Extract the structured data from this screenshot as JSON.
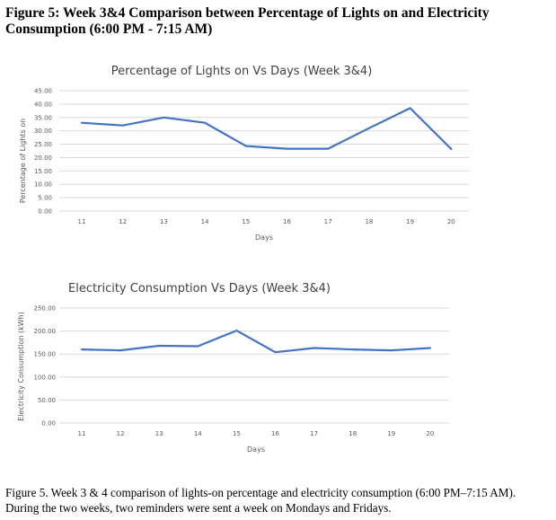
{
  "figure": {
    "title": "Figure 5: Week 3&4 Comparison between Percentage of Lights on and Electricity Consumption (6:00 PM - 7:15 AM)",
    "caption": "Figure 5. Week 3 & 4 comparison of lights-on percentage and electricity consumption (6:00 PM–7:15 AM). During the two weeks, two reminders were sent a week on Mondays and Fridays."
  },
  "colors": {
    "series": "#4472c4",
    "grid": "#d9d9d9",
    "text": "#595959"
  },
  "chart_data": [
    {
      "type": "line",
      "title": "Percentage of Lights on Vs Days (Week 3&4)",
      "xlabel": "Days",
      "ylabel": "Percentage of Lights on",
      "categories": [
        "11",
        "12",
        "13",
        "14",
        "15",
        "16",
        "17",
        "18",
        "19",
        "20"
      ],
      "series": [
        {
          "name": "Percentage of Lights on",
          "values": [
            33,
            32,
            35,
            33,
            24.3,
            23.3,
            23.3,
            31,
            38.5,
            23.2
          ]
        }
      ],
      "ylim": [
        0,
        45
      ],
      "yticks": [
        0,
        5,
        10,
        15,
        20,
        25,
        30,
        35,
        40,
        45
      ],
      "ytick_labels": [
        "0.00",
        "5.00",
        "10.00",
        "15.00",
        "20.00",
        "25.00",
        "30.00",
        "35.00",
        "40.00",
        "45.00"
      ],
      "grid": true,
      "legend": "none"
    },
    {
      "type": "line",
      "title": "Electricity Consumption Vs Days (Week 3&4)",
      "xlabel": "Days",
      "ylabel": "Electricity Consumption (kWh)",
      "categories": [
        "11",
        "12",
        "13",
        "14",
        "15",
        "16",
        "17",
        "18",
        "19",
        "20"
      ],
      "series": [
        {
          "name": "Electricity Consumption (kWh)",
          "values": [
            160,
            158,
            168,
            167,
            201,
            154,
            163,
            160,
            158,
            163
          ]
        }
      ],
      "ylim": [
        0,
        250
      ],
      "yticks": [
        0,
        50,
        100,
        150,
        200,
        250
      ],
      "ytick_labels": [
        "0.00",
        "50.00",
        "100.00",
        "150.00",
        "200.00",
        "250.00"
      ],
      "grid": true,
      "legend": "none"
    }
  ]
}
